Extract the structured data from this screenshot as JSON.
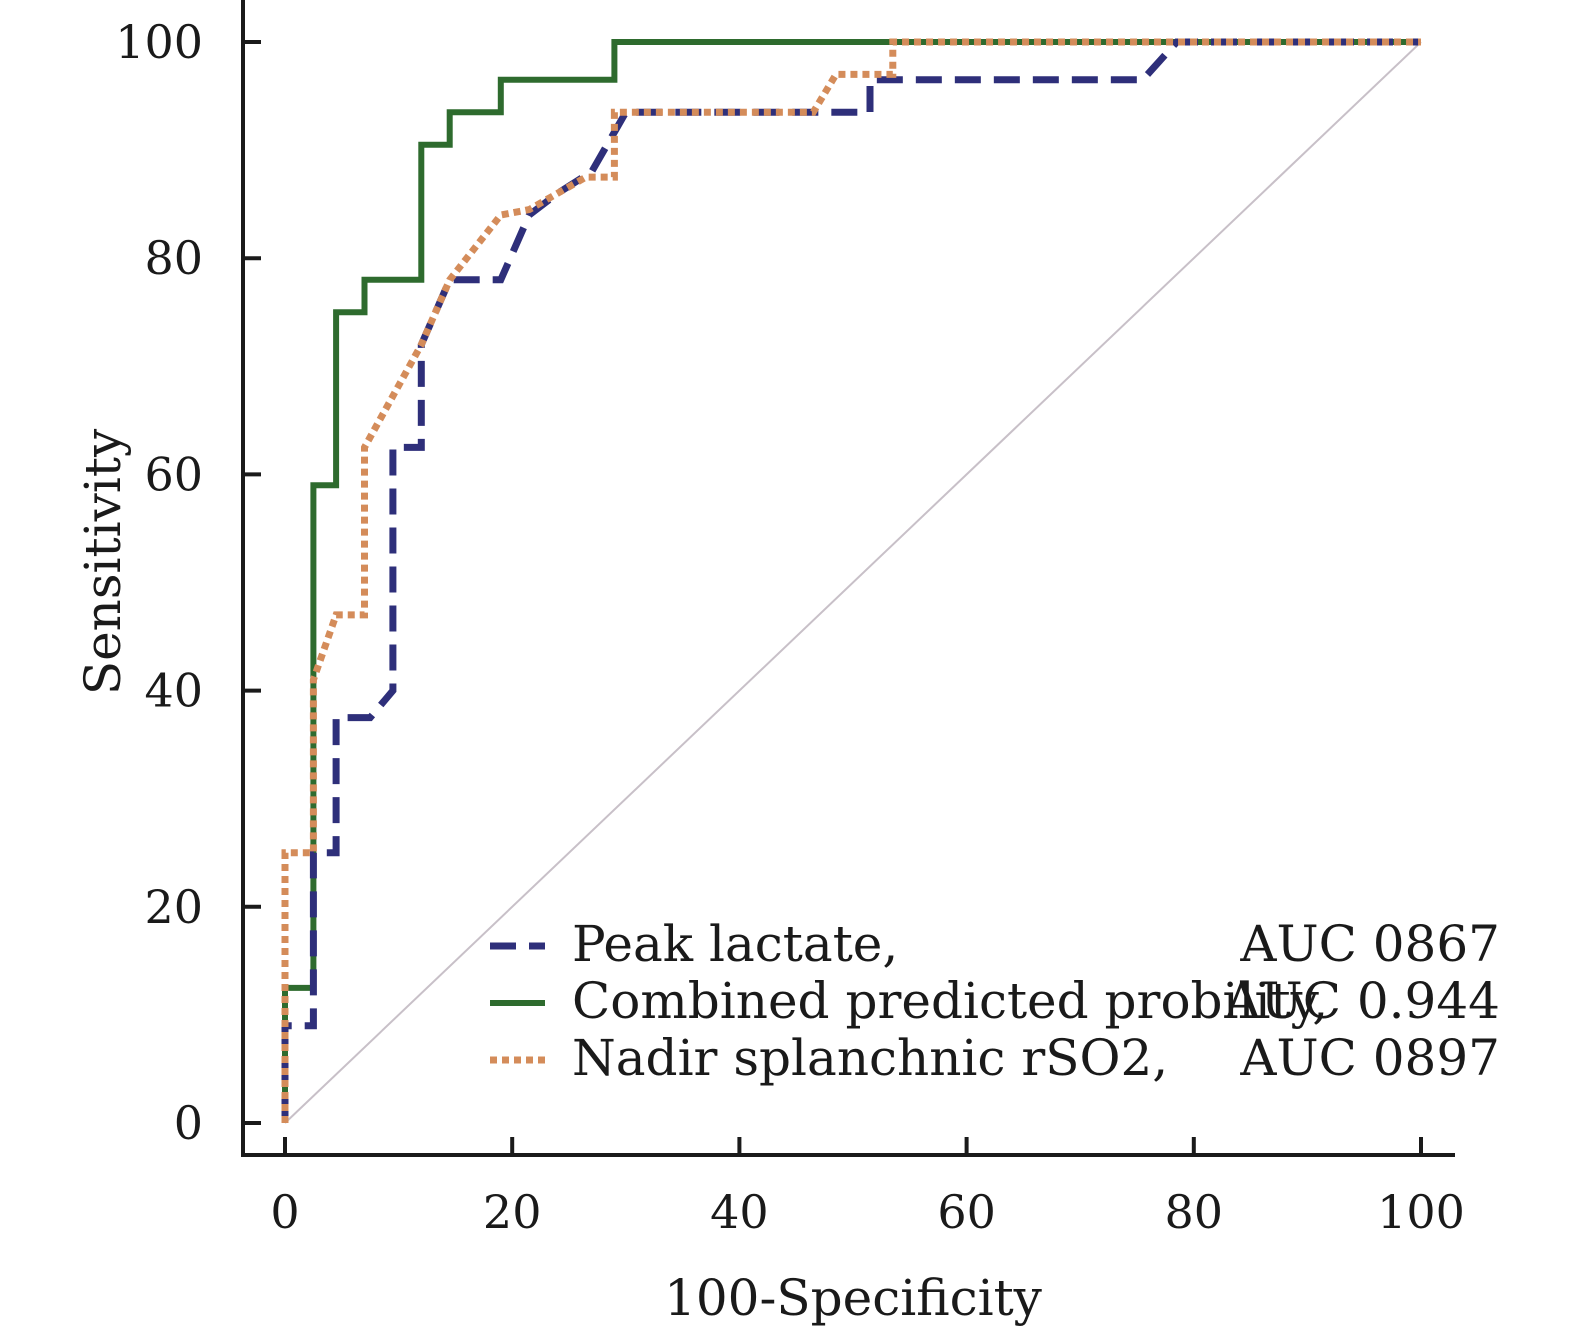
{
  "chart_data": {
    "type": "line",
    "xlabel": "100-Specificity",
    "ylabel": "Sensitivity",
    "xlim": [
      0,
      100
    ],
    "ylim": [
      0,
      100
    ],
    "xticks": [
      "0",
      "20",
      "40",
      "60",
      "80",
      "100"
    ],
    "yticks": [
      "0",
      "20",
      "40",
      "60",
      "80",
      "100"
    ],
    "grid": false,
    "legend_position": "bottom-right",
    "reference_line": {
      "x": [
        0,
        100
      ],
      "y": [
        0,
        100
      ],
      "color": "#c8c0c8"
    },
    "series": [
      {
        "name": "Peak lactate,",
        "auc_label": "AUC 0867",
        "style": "dashed",
        "color": "#2e2f7a",
        "points": [
          [
            0,
            0
          ],
          [
            0,
            9
          ],
          [
            2.5,
            9
          ],
          [
            2.5,
            25
          ],
          [
            4.5,
            25
          ],
          [
            4.5,
            37.5
          ],
          [
            7.5,
            37.5
          ],
          [
            9.5,
            40
          ],
          [
            9.5,
            62.5
          ],
          [
            12,
            62.5
          ],
          [
            12,
            72
          ],
          [
            14.5,
            78
          ],
          [
            19,
            78
          ],
          [
            21.5,
            84
          ],
          [
            24,
            86
          ],
          [
            27,
            88
          ],
          [
            30,
            93.5
          ],
          [
            51.5,
            93.5
          ],
          [
            51.5,
            96.5
          ],
          [
            75.5,
            96.5
          ],
          [
            78.5,
            100
          ],
          [
            100,
            100
          ]
        ]
      },
      {
        "name": "Combined predicted probility,",
        "auc_label": "AUC 0.944",
        "style": "solid",
        "color": "#2e6b2e",
        "points": [
          [
            0,
            0
          ],
          [
            0,
            12.5
          ],
          [
            2.5,
            12.5
          ],
          [
            2.5,
            59
          ],
          [
            4.5,
            59
          ],
          [
            4.5,
            75
          ],
          [
            7,
            75
          ],
          [
            7,
            78
          ],
          [
            12,
            78
          ],
          [
            12,
            90.5
          ],
          [
            14.5,
            90.5
          ],
          [
            14.5,
            93.5
          ],
          [
            19,
            93.5
          ],
          [
            19,
            96.5
          ],
          [
            29,
            96.5
          ],
          [
            29,
            100
          ],
          [
            100,
            100
          ]
        ]
      },
      {
        "name": "Nadir splanchnic rSO2,",
        "auc_label": "AUC 0897",
        "style": "dotted",
        "color": "#d48c5a",
        "points": [
          [
            0,
            0
          ],
          [
            0,
            25
          ],
          [
            2.5,
            25
          ],
          [
            2.5,
            41
          ],
          [
            4.5,
            47
          ],
          [
            7,
            47
          ],
          [
            7,
            62.5
          ],
          [
            12,
            72
          ],
          [
            14.5,
            78
          ],
          [
            19,
            84
          ],
          [
            21.5,
            84.5
          ],
          [
            24,
            86
          ],
          [
            26.5,
            87.5
          ],
          [
            29,
            87.5
          ],
          [
            29,
            93.5
          ],
          [
            46.5,
            93.5
          ],
          [
            48.5,
            97
          ],
          [
            53.5,
            97
          ],
          [
            53.5,
            100
          ],
          [
            100,
            100
          ]
        ]
      }
    ]
  }
}
